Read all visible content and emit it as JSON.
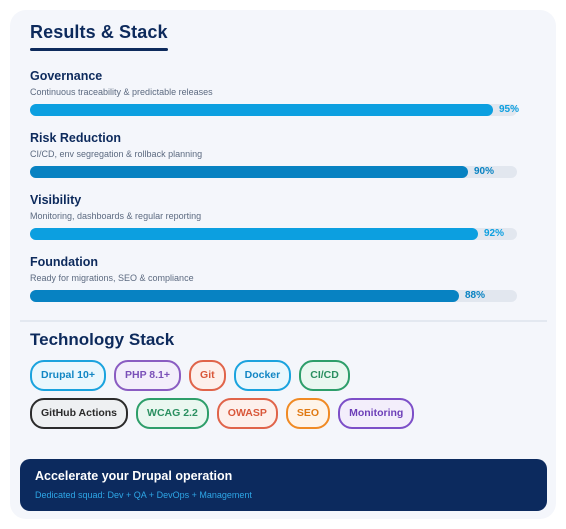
{
  "header": {
    "title": "Results & Stack"
  },
  "metrics": [
    {
      "name": "Governance",
      "description": "Continuous traceability & predictable releases",
      "percent": 95,
      "label": "95%",
      "color": "#0c9fe0",
      "text_color": "#0c9fe0"
    },
    {
      "name": "Risk Reduction",
      "description": "CI/CD, env segregation & rollback planning",
      "percent": 90,
      "label": "90%",
      "color": "#0782c2",
      "text_color": "#0782c2"
    },
    {
      "name": "Visibility",
      "description": "Monitoring, dashboards & regular reporting",
      "percent": 92,
      "label": "92%",
      "color": "#0c9fe0",
      "text_color": "#0c9fe0"
    },
    {
      "name": "Foundation",
      "description": "Ready for migrations, SEO & compliance",
      "percent": 88,
      "label": "88%",
      "color": "#0782c2",
      "text_color": "#0782c2"
    }
  ],
  "stack": {
    "title": "Technology Stack",
    "rows": [
      [
        {
          "label": "Drupal 10+",
          "border": "#1aa3de",
          "bg": "#eaf7fd",
          "text": "#1186c4"
        },
        {
          "label": "PHP 8.1+",
          "border": "#8a5cc2",
          "bg": "#f3eefb",
          "text": "#7a4fb8"
        },
        {
          "label": "Git",
          "border": "#e0644a",
          "bg": "#fdf0ec",
          "text": "#d9573a"
        },
        {
          "label": "Docker",
          "border": "#1aa3de",
          "bg": "#eaf7fd",
          "text": "#1186c4"
        },
        {
          "label": "CI/CD",
          "border": "#2e9e6a",
          "bg": "#eaf7f0",
          "text": "#2a8f60"
        }
      ],
      [
        {
          "label": "GitHub Actions",
          "border": "#2b2b2b",
          "bg": "#eef0f2",
          "text": "#2b2b2b"
        },
        {
          "label": "WCAG 2.2",
          "border": "#2e9e6a",
          "bg": "#eaf7f0",
          "text": "#2a8f60"
        },
        {
          "label": "OWASP",
          "border": "#e0644a",
          "bg": "#fdf0ec",
          "text": "#d9573a"
        },
        {
          "label": "SEO",
          "border": "#f08a24",
          "bg": "#fef4ea",
          "text": "#e07a14"
        },
        {
          "label": "Monitoring",
          "border": "#7d4fc8",
          "bg": "#f3eefb",
          "text": "#6d3fb8"
        }
      ]
    ]
  },
  "cta": {
    "title": "Accelerate your Drupal operation",
    "subtitle": "Dedicated squad: Dev + QA + DevOps + Management"
  },
  "colors": {
    "navy": "#0d2a5c",
    "card_bg": "#f4f6fb",
    "track": "#e2e7ef"
  }
}
